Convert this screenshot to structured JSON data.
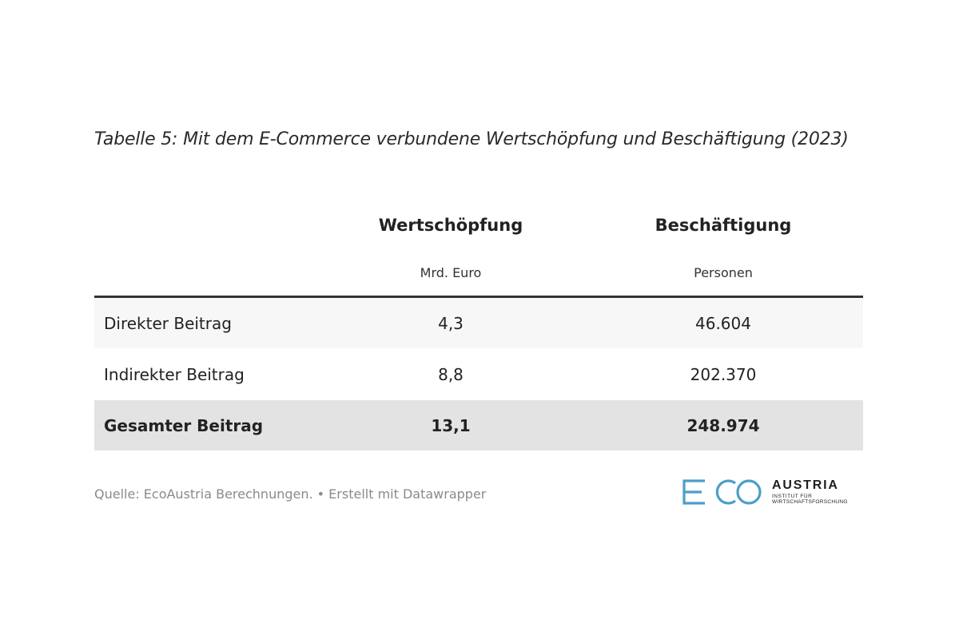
{
  "chart_data": {
    "type": "table",
    "title": "Tabelle 5: Mit dem E-Commerce verbundene Wertschöpfung und Beschäftigung (2023)",
    "columns": [
      {
        "header": "Wertschöpfung",
        "unit": "Mrd. Euro"
      },
      {
        "header": "Beschäftigung",
        "unit": "Personen"
      }
    ],
    "rows": [
      {
        "label": "Direkter Beitrag",
        "values": [
          "4,3",
          "46.604"
        ]
      },
      {
        "label": "Indirekter Beitrag",
        "values": [
          "8,8",
          "202.370"
        ]
      },
      {
        "label": "Gesamter Beitrag",
        "values": [
          "13,1",
          "248.974"
        ]
      }
    ]
  },
  "footer": {
    "source": "Quelle: EcoAustria Berechnungen. • Erstellt mit Datawrapper"
  },
  "logo": {
    "mark": "ECO",
    "name": "AUSTRIA",
    "tagline_1": "INSTITUT FÜR",
    "tagline_2": "WIRTSCHAFTSFORSCHUNG",
    "color": "#4a9fc8"
  }
}
